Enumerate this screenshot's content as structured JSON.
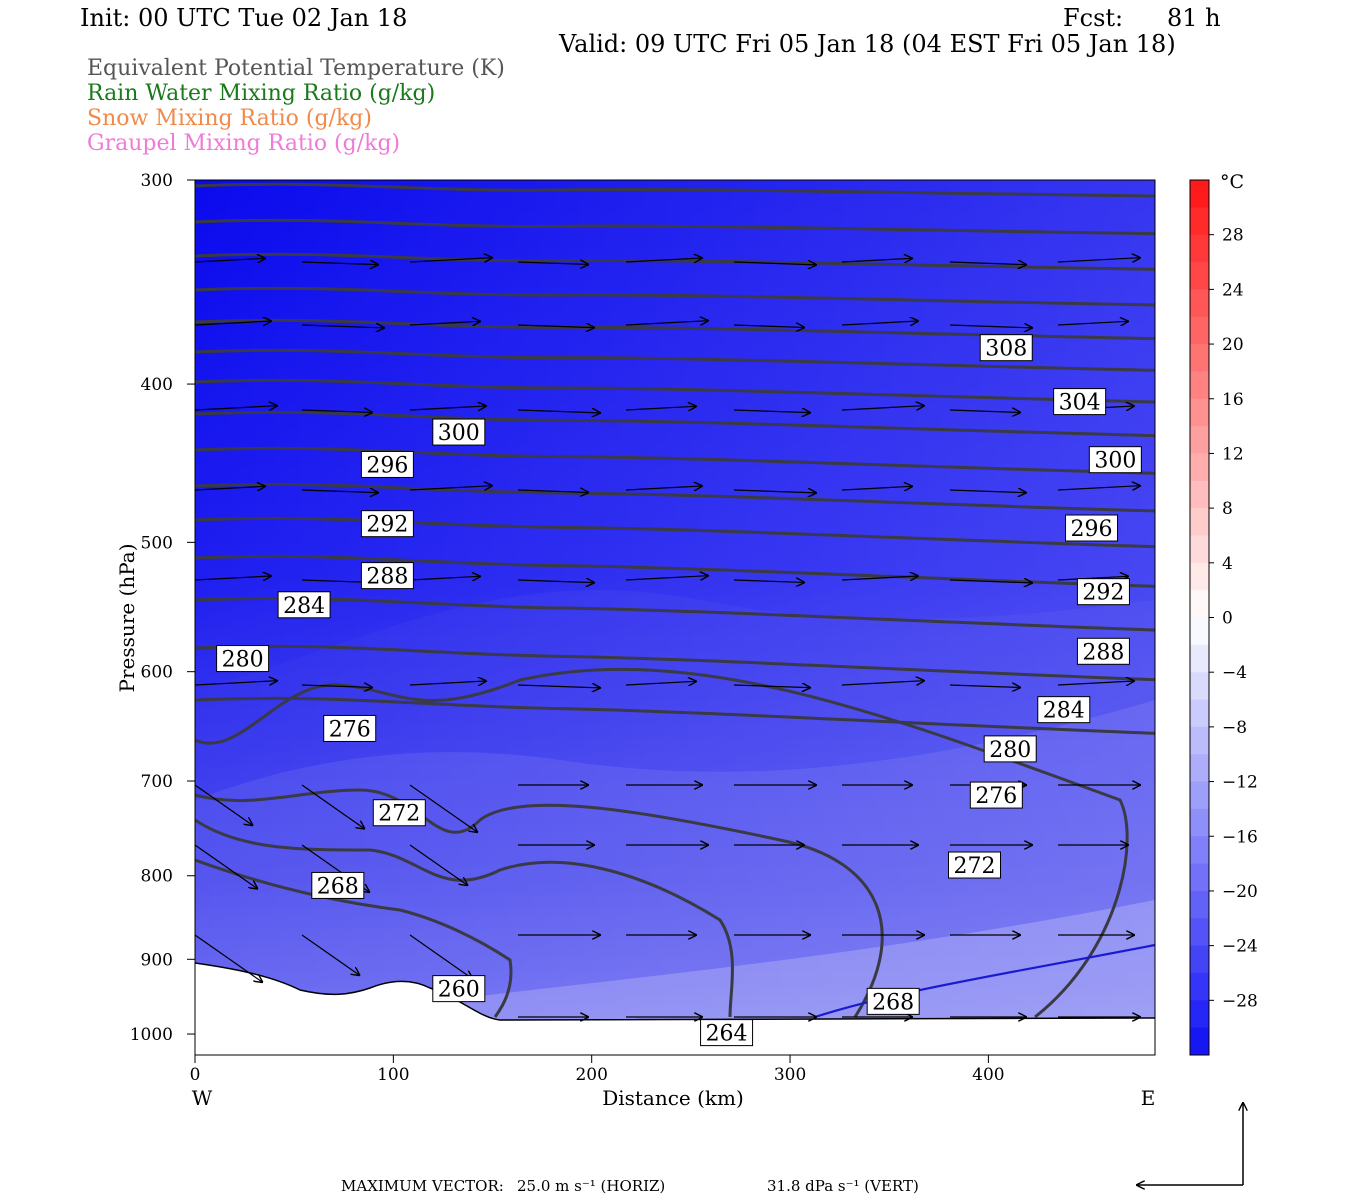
{
  "header": {
    "init": "Init: 00 UTC Tue 02 Jan 18",
    "fcst_label": "Fcst:",
    "fcst_value": "81 h",
    "valid": "Valid: 09 UTC Fri 05 Jan 18 (04 EST Fri 05 Jan 18)"
  },
  "legend": [
    {
      "label": "Equivalent Potential Temperature (K)",
      "color": "#555555"
    },
    {
      "label": "Rain Water Mixing Ratio (g/kg)",
      "color": "#1a7a1a"
    },
    {
      "label": "Snow Mixing Ratio (g/kg)",
      "color": "#f08a4b"
    },
    {
      "label": "Graupel Mixing Ratio (g/kg)",
      "color": "#f07ad8"
    }
  ],
  "footer": {
    "max_vector_label": "MAXIMUM VECTOR:",
    "horiz": "25.0 m s⁻¹ (HORIZ)",
    "vert": "31.8 dPa s⁻¹ (VERT)"
  },
  "chart_data": {
    "type": "cross-section",
    "xlabel": "Distance (km)",
    "ylabel": "Pressure (hPa)",
    "x_ticks": [
      0,
      100,
      200,
      300,
      400
    ],
    "y_ticks": [
      300,
      400,
      500,
      600,
      700,
      800,
      900,
      1000
    ],
    "xlim": [
      0,
      484
    ],
    "ylim": [
      1030,
      300
    ],
    "y_scale": "log",
    "left_end_label": "W",
    "right_end_label": "E",
    "colorbar": {
      "unit": "°C",
      "tick_labels": [
        "28",
        "24",
        "20",
        "16",
        "12",
        "8",
        "4",
        "0",
        "−4",
        "−8",
        "−12",
        "−16",
        "−20",
        "−24",
        "−28"
      ],
      "tick_values": [
        28,
        24,
        20,
        16,
        12,
        8,
        4,
        0,
        -4,
        -8,
        -12,
        -16,
        -20,
        -24,
        -28
      ],
      "range": [
        -32,
        32
      ]
    },
    "contour_labels": [
      {
        "text": "308",
        "x": 409,
        "p": 380
      },
      {
        "text": "304",
        "x": 446,
        "p": 410
      },
      {
        "text": "300",
        "x": 133,
        "p": 428
      },
      {
        "text": "300",
        "x": 464,
        "p": 445
      },
      {
        "text": "296",
        "x": 97,
        "p": 448
      },
      {
        "text": "296",
        "x": 452,
        "p": 490
      },
      {
        "text": "292",
        "x": 97,
        "p": 487
      },
      {
        "text": "292",
        "x": 458,
        "p": 536
      },
      {
        "text": "288",
        "x": 97,
        "p": 524
      },
      {
        "text": "288",
        "x": 458,
        "p": 583
      },
      {
        "text": "284",
        "x": 55,
        "p": 546
      },
      {
        "text": "284",
        "x": 438,
        "p": 633
      },
      {
        "text": "280",
        "x": 24,
        "p": 589
      },
      {
        "text": "280",
        "x": 411,
        "p": 669
      },
      {
        "text": "276",
        "x": 78,
        "p": 650
      },
      {
        "text": "276",
        "x": 404,
        "p": 714
      },
      {
        "text": "272",
        "x": 103,
        "p": 732
      },
      {
        "text": "272",
        "x": 393,
        "p": 788
      },
      {
        "text": "268",
        "x": 72,
        "p": 811
      },
      {
        "text": "268",
        "x": 352,
        "p": 955
      },
      {
        "text": "264",
        "x": 268,
        "p": 998
      },
      {
        "text": "260",
        "x": 133,
        "p": 938
      }
    ]
  }
}
